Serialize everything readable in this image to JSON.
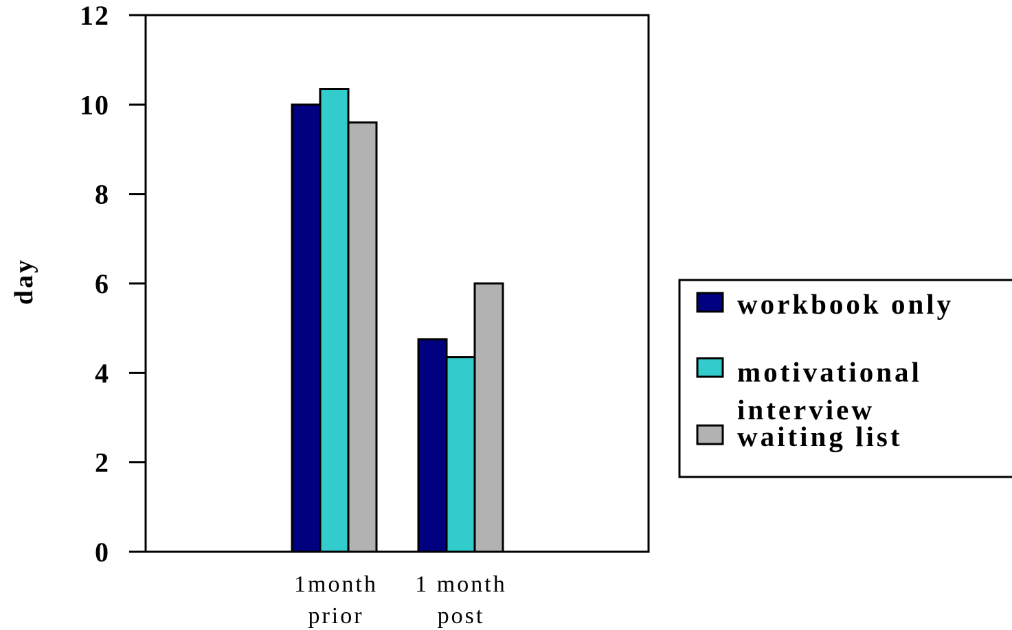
{
  "chart_data": {
    "type": "bar",
    "title": "",
    "xlabel": "",
    "ylabel": "day",
    "ylim": [
      0,
      12
    ],
    "yticks": [
      "0",
      "2",
      "4",
      "6",
      "8",
      "10",
      "12"
    ],
    "categories": [
      [
        "1month",
        "prior"
      ],
      [
        "1 month",
        "post"
      ]
    ],
    "series": [
      {
        "name": "workbook only",
        "color": "#000080",
        "values": [
          10.0,
          4.75
        ]
      },
      {
        "name": [
          "motivational",
          "interview"
        ],
        "color": "#33cccc",
        "values": [
          10.35,
          4.35
        ]
      },
      {
        "name": "waiting list",
        "color": "#b2b2b2",
        "values": [
          9.6,
          6.0
        ]
      }
    ],
    "grid": false,
    "legend": "right"
  }
}
